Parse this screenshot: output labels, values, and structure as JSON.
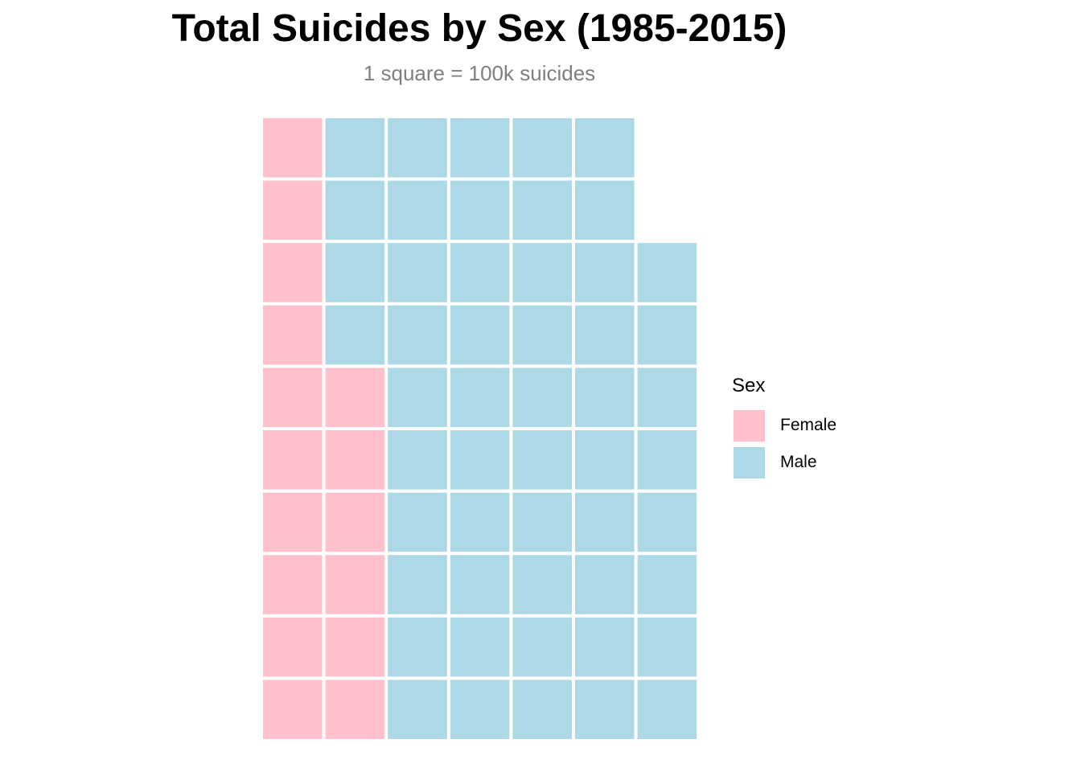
{
  "chart_data": {
    "type": "waffle",
    "title": "Total Suicides by Sex (1985-2015)",
    "subtitle": "1 square = 100k suicides",
    "unit_per_square": 100000,
    "rows": 10,
    "fill_order": "column-major, bottom-to-top",
    "categories": [
      {
        "name": "Female",
        "squares": 16,
        "color": "#FFC0CB"
      },
      {
        "name": "Male",
        "squares": 52,
        "color": "#ADD8E6"
      }
    ],
    "legend": {
      "title": "Sex",
      "position": "right"
    },
    "grid": false
  }
}
